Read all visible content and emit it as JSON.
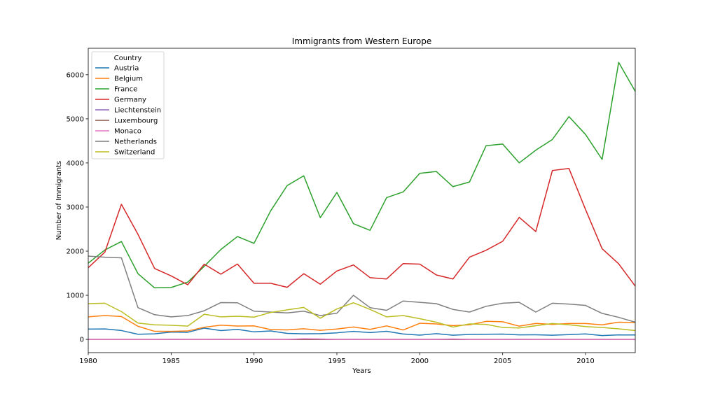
{
  "chart_data": {
    "type": "line",
    "title": "Immigrants from Western Europe",
    "xlabel": "Years",
    "ylabel": "Number of Immigrants",
    "xlim": [
      1980,
      2013
    ],
    "ylim": [
      -300,
      6600
    ],
    "xticks": [
      1980,
      1985,
      1990,
      1995,
      2000,
      2005,
      2010
    ],
    "yticks": [
      0,
      1000,
      2000,
      3000,
      4000,
      5000,
      6000
    ],
    "legend": {
      "title": "Country",
      "position": "top-left"
    },
    "x": [
      1980,
      1981,
      1982,
      1983,
      1984,
      1985,
      1986,
      1987,
      1988,
      1989,
      1990,
      1991,
      1992,
      1993,
      1994,
      1995,
      1996,
      1997,
      1998,
      1999,
      2000,
      2001,
      2002,
      2003,
      2004,
      2005,
      2006,
      2007,
      2008,
      2009,
      2010,
      2011,
      2012,
      2013
    ],
    "series": [
      {
        "name": "Austria",
        "color": "#1f77b4",
        "values": [
          234,
          238,
          201,
          117,
          127,
          165,
          161,
          256,
          200,
          228,
          171,
          191,
          137,
          126,
          130,
          149,
          181,
          155,
          183,
          122,
          97,
          131,
          94,
          112,
          117,
          120,
          103,
          104,
          94,
          109,
          124,
          87,
          102,
          100
        ]
      },
      {
        "name": "Belgium",
        "color": "#ff7f0e",
        "values": [
          511,
          540,
          519,
          297,
          183,
          181,
          191,
          276,
          322,
          302,
          306,
          223,
          215,
          241,
          205,
          236,
          280,
          228,
          306,
          213,
          366,
          350,
          312,
          330,
          409,
          400,
          300,
          362,
          340,
          360,
          360,
          330,
          390,
          380
        ]
      },
      {
        "name": "France",
        "color": "#2ca02c",
        "values": [
          1729,
          2027,
          2219,
          1490,
          1169,
          1177,
          1298,
          1658,
          2038,
          2332,
          2177,
          2911,
          3487,
          3709,
          2759,
          3332,
          2623,
          2473,
          3214,
          3343,
          3765,
          3806,
          3463,
          3568,
          4391,
          4429,
          4002,
          4290,
          4532,
          5051,
          4646,
          4080,
          6280,
          5623
        ]
      },
      {
        "name": "Germany",
        "color": "#d62728",
        "values": [
          1626,
          1977,
          3062,
          2382,
          1609,
          1440,
          1239,
          1705,
          1478,
          1709,
          1272,
          1272,
          1181,
          1490,
          1251,
          1551,
          1688,
          1400,
          1370,
          1719,
          1707,
          1460,
          1369,
          1864,
          2021,
          2224,
          2767,
          2445,
          3829,
          3875,
          2945,
          2057,
          1713,
          1208
        ]
      },
      {
        "name": "Liechtenstein",
        "color": "#9467bd",
        "values": [
          0,
          0,
          0,
          0,
          0,
          1,
          0,
          0,
          1,
          0,
          0,
          0,
          0,
          1,
          0,
          0,
          1,
          0,
          0,
          0,
          0,
          1,
          1,
          0,
          0,
          0,
          1,
          0,
          0,
          0,
          0,
          0,
          0,
          0
        ]
      },
      {
        "name": "Luxembourg",
        "color": "#8c564b",
        "values": [
          0,
          0,
          0,
          0,
          0,
          0,
          0,
          0,
          0,
          0,
          0,
          0,
          0,
          0,
          0,
          0,
          0,
          0,
          0,
          0,
          0,
          0,
          0,
          0,
          0,
          0,
          0,
          0,
          0,
          0,
          0,
          0,
          0,
          0
        ]
      },
      {
        "name": "Monaco",
        "color": "#e377c2",
        "values": [
          0,
          0,
          0,
          0,
          0,
          0,
          0,
          0,
          0,
          0,
          0,
          0,
          0,
          15,
          10,
          0,
          0,
          0,
          0,
          0,
          0,
          0,
          10,
          0,
          0,
          0,
          0,
          0,
          0,
          0,
          0,
          0,
          0,
          0
        ]
      },
      {
        "name": "Netherlands",
        "color": "#7f7f7f",
        "values": [
          1889,
          1863,
          1850,
          720,
          560,
          510,
          540,
          650,
          835,
          830,
          640,
          620,
          600,
          640,
          540,
          595,
          1000,
          720,
          660,
          870,
          840,
          810,
          680,
          620,
          750,
          820,
          840,
          620,
          820,
          800,
          770,
          590,
          500,
          390
        ]
      },
      {
        "name": "Switzerland",
        "color": "#bcbd22",
        "values": [
          810,
          820,
          630,
          370,
          330,
          320,
          300,
          570,
          510,
          525,
          505,
          610,
          670,
          725,
          480,
          690,
          830,
          680,
          510,
          540,
          470,
          390,
          280,
          350,
          340,
          270,
          260,
          310,
          360,
          330,
          290,
          270,
          240,
          200
        ]
      }
    ]
  }
}
